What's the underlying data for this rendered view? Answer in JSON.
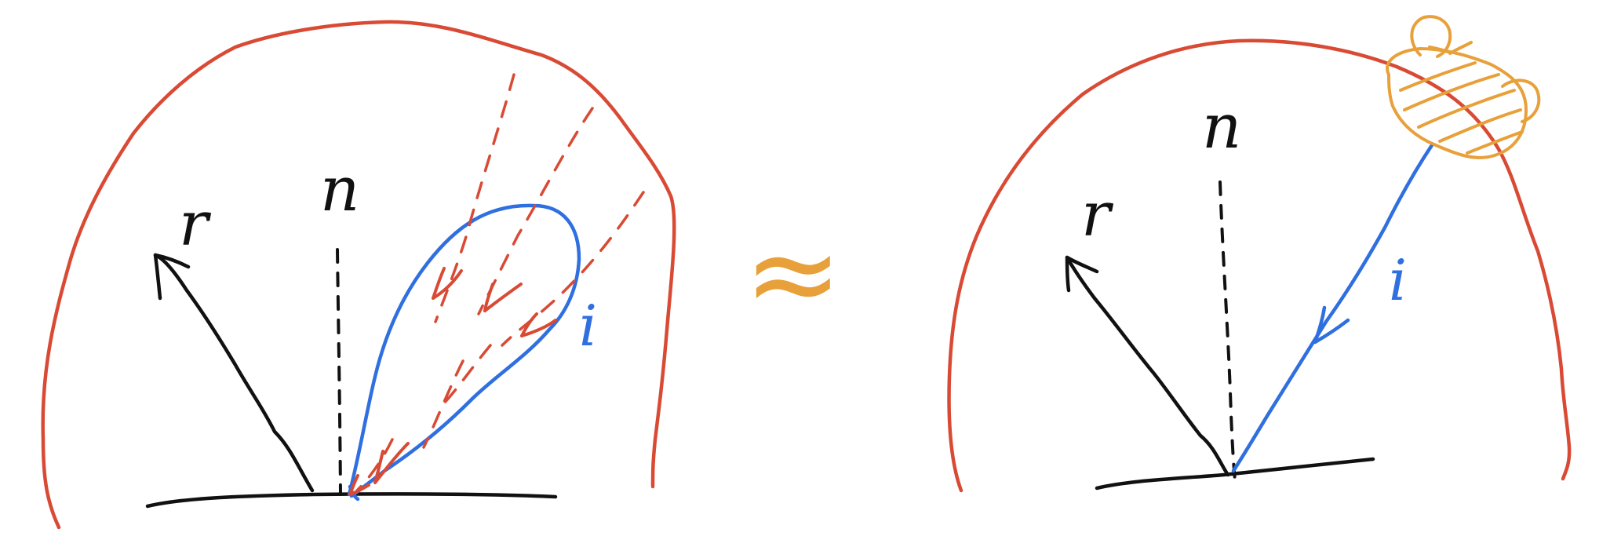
{
  "colors": {
    "ink": "#111111",
    "hemisphere": "#d94a35",
    "incident": "#2f6fe0",
    "approx": "#e8a03a",
    "light": "#e8a03a"
  },
  "left_panel": {
    "label_normal": "n",
    "label_reflected": "r",
    "label_incident": "i"
  },
  "right_panel": {
    "label_normal": "n",
    "label_reflected": "r",
    "label_incident": "i"
  },
  "approx_symbol": "≈"
}
